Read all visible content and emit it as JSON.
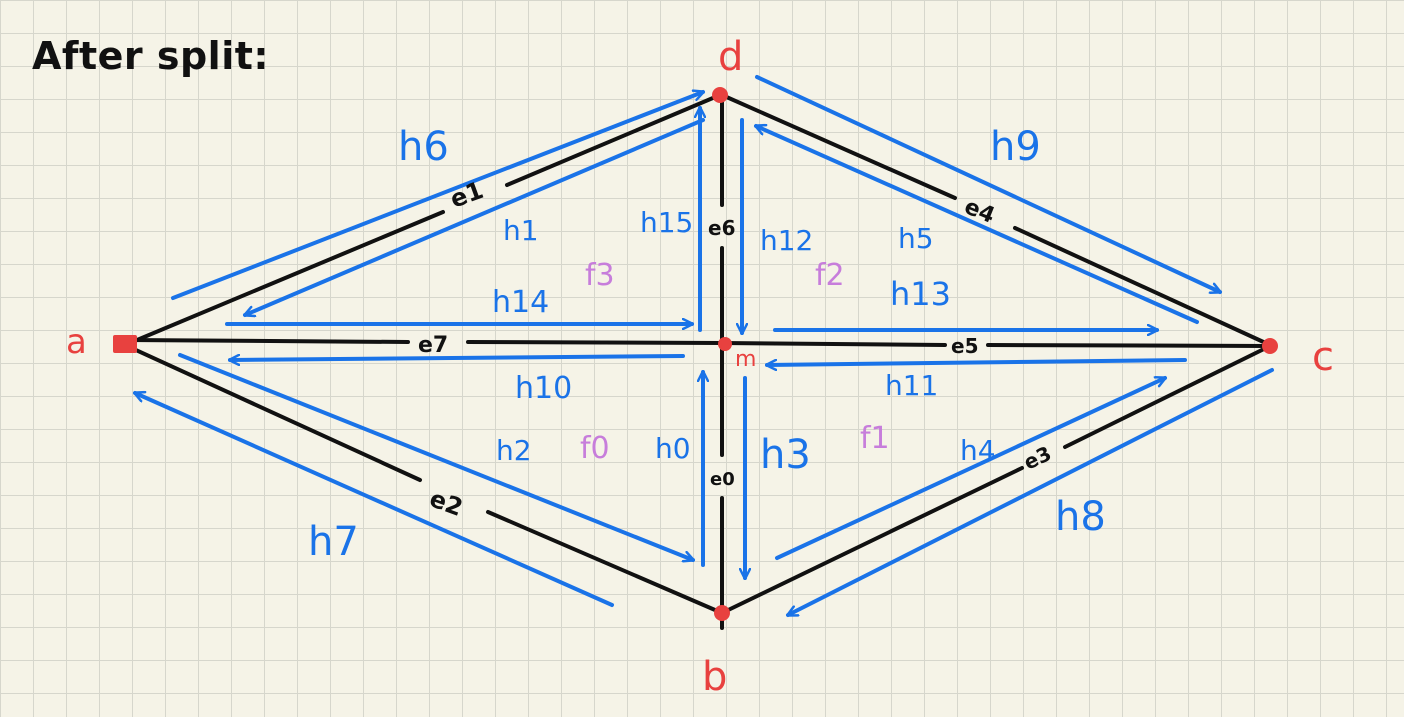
{
  "title": "After split:",
  "colors": {
    "background": "#f5f3e7",
    "grid": "#d6d6cc",
    "edge": "#111111",
    "halfedge": "#1a73e8",
    "vertex": "#e8413f",
    "face": "#c77ddb"
  },
  "vertices": {
    "a": "a",
    "b": "b",
    "c": "c",
    "d": "d",
    "m": "m"
  },
  "edges": {
    "e0": "e0",
    "e1": "e1",
    "e2": "e2",
    "e3": "e3",
    "e4": "e4",
    "e5": "e5",
    "e6": "e6",
    "e7": "e7"
  },
  "halfedges": {
    "h0": "h0",
    "h1": "h1",
    "h2": "h2",
    "h3": "h3",
    "h4": "h4",
    "h5": "h5",
    "h6": "h6",
    "h7": "h7",
    "h8": "h8",
    "h9": "h9",
    "h10": "h10",
    "h11": "h11",
    "h12": "h12",
    "h13": "h13",
    "h14": "h14",
    "h15": "h15"
  },
  "faces": {
    "f0": "f0",
    "f1": "f1",
    "f2": "f2",
    "f3": "f3"
  }
}
